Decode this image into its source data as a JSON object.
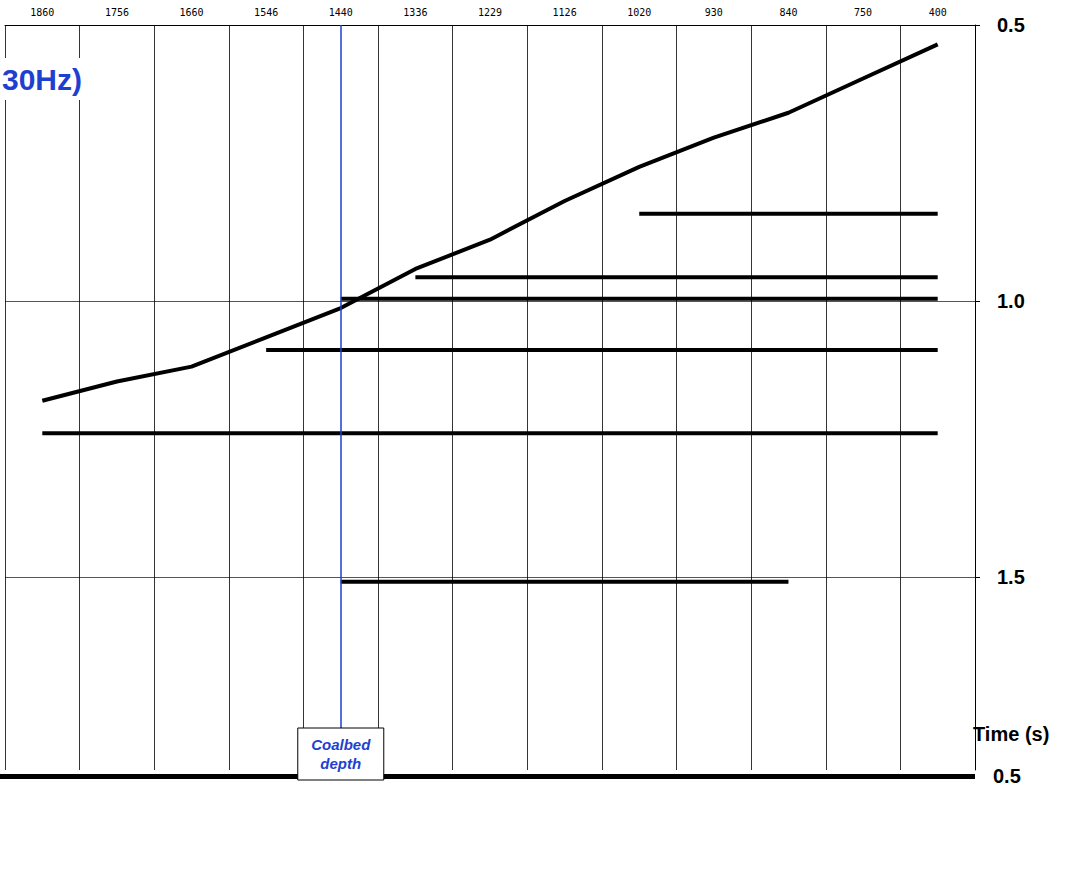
{
  "chart_data": {
    "type": "line",
    "title": "30Hz)",
    "categories": [
      "1860",
      "1756",
      "1660",
      "1546",
      "1440",
      "1336",
      "1229",
      "1126",
      "1020",
      "930",
      "840",
      "750",
      "400"
    ],
    "series": [
      {
        "color": "#000000",
        "values": [
          1.181,
          1.146,
          1.119,
          1.066,
          1.013,
          0.942,
          0.889,
          0.819,
          0.757,
          0.704,
          0.659,
          0.597,
          0.535
        ]
      },
      {
        "color": "#000000",
        "values": [
          null,
          null,
          null,
          null,
          null,
          null,
          null,
          null,
          0.842,
          0.842,
          0.842,
          0.842,
          0.842
        ]
      },
      {
        "color": "#000000",
        "values": [
          null,
          null,
          null,
          null,
          null,
          0.957,
          0.957,
          0.957,
          0.957,
          0.957,
          0.957,
          0.957,
          0.957
        ]
      },
      {
        "color": "#000000",
        "values": [
          null,
          null,
          null,
          null,
          0.996,
          0.996,
          0.996,
          0.996,
          0.996,
          0.996,
          0.996,
          0.996,
          0.996
        ]
      },
      {
        "color": "#000000",
        "values": [
          null,
          null,
          null,
          1.089,
          1.089,
          1.089,
          1.089,
          1.089,
          1.089,
          1.089,
          1.089,
          1.089,
          1.089
        ]
      },
      {
        "color": "#000000",
        "values": [
          1.24,
          1.24,
          1.24,
          1.24,
          1.24,
          1.24,
          1.24,
          1.24,
          1.24,
          1.24,
          1.24,
          1.24,
          1.24
        ]
      },
      {
        "color": "#000000",
        "values": [
          null,
          null,
          null,
          null,
          1.509,
          1.509,
          1.509,
          1.509,
          1.509,
          1.509,
          1.509,
          null,
          null
        ]
      }
    ],
    "ylim": [
      0.5,
      1.85
    ],
    "yticks": [
      0.5,
      {
        "value": 1,
        "label": "1.0"
      },
      1.5
    ],
    "y_label": "Time (s)",
    "grid": true,
    "annotations": [
      {
        "text": "Coalbed depth",
        "x": "1440",
        "color": "#1f3fd0"
      },
      {
        "text": "0.5"
      }
    ]
  }
}
